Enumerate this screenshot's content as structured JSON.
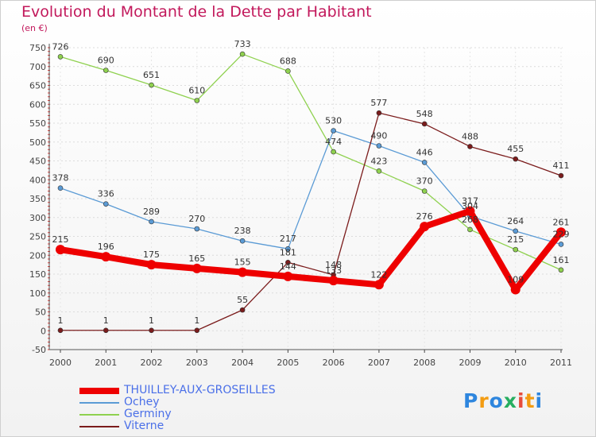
{
  "title": "Evolution du Montant de la Dette par Habitant",
  "subtitle": "(en €)",
  "brand": {
    "letters": [
      "P",
      "r",
      "o",
      "x",
      "i",
      "t",
      "i"
    ],
    "colors": [
      "#2e86de",
      "#f39c12",
      "#2e86de",
      "#27ae60",
      "#e74c3c",
      "#f39c12",
      "#2e86de"
    ]
  },
  "chart_data": {
    "type": "line",
    "x": [
      "2000",
      "2001",
      "2002",
      "2003",
      "2004",
      "2005",
      "2006",
      "2007",
      "2008",
      "2009",
      "2010",
      "2011"
    ],
    "ylim": [
      -50,
      750
    ],
    "yticks": [
      -50,
      0,
      50,
      100,
      150,
      200,
      250,
      300,
      350,
      400,
      450,
      500,
      550,
      600,
      650,
      700,
      750
    ],
    "grid": true,
    "legend_placement": "bottom-left",
    "series": [
      {
        "name": "THUILLEY-AUX-GROSEILLES",
        "color": "#ee0000",
        "values": [
          215,
          196,
          175,
          165,
          155,
          144,
          133,
          122,
          276,
          317,
          109,
          261
        ],
        "labels": [
          "215",
          "196",
          "175",
          "165",
          "155",
          "144",
          "133",
          "122",
          "276",
          "317",
          "109",
          "261"
        ]
      },
      {
        "name": "Ochey",
        "color": "#5b9bd5",
        "values": [
          378,
          336,
          289,
          270,
          238,
          217,
          530,
          490,
          446,
          304,
          264,
          229
        ],
        "labels": [
          "378",
          "336",
          "289",
          "270",
          "238",
          "217",
          "530",
          "490",
          "446",
          "304",
          "264",
          "229"
        ]
      },
      {
        "name": "Germiny",
        "color": "#8fd14f",
        "values": [
          726,
          690,
          651,
          610,
          733,
          688,
          474,
          423,
          370,
          268,
          215,
          161
        ],
        "labels": [
          "726",
          "690",
          "651",
          "610",
          "733",
          "688",
          "474",
          "423",
          "370",
          "268",
          "215",
          "161"
        ]
      },
      {
        "name": "Viterne",
        "color": "#7b1c1c",
        "values": [
          1,
          1,
          1,
          1,
          55,
          181,
          148,
          577,
          548,
          488,
          455,
          411
        ],
        "labels": [
          "1",
          "1",
          "1",
          "1",
          "55",
          "181",
          "148",
          "577",
          "548",
          "488",
          "455",
          "411"
        ]
      }
    ]
  }
}
